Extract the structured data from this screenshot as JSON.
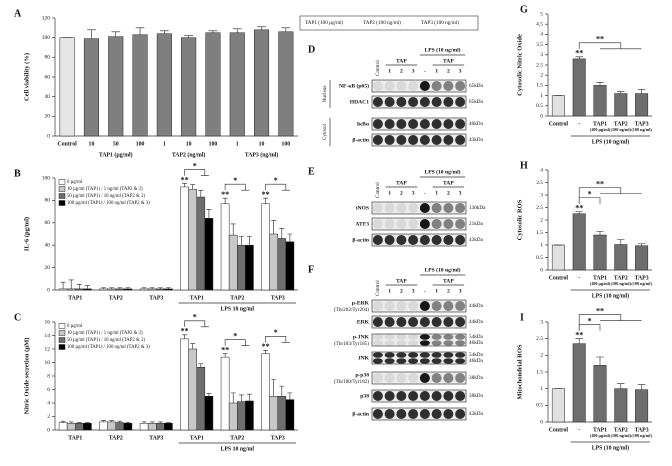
{
  "chart_data": [
    {
      "type": "bar",
      "label": "A",
      "ylabel": "Cell viability (%)",
      "categories": [
        "Control",
        "10",
        "50",
        "100",
        "1",
        "10",
        "100",
        "1",
        "10",
        "100"
      ],
      "group_labels": [
        "TAP1 (µg/ml)",
        "TAP2 (ng/ml)",
        "TAP3 (ng/ml)"
      ],
      "values": [
        100,
        99,
        101,
        103,
        104,
        100,
        105,
        105,
        108,
        106
      ],
      "errors": [
        0,
        9,
        5,
        7,
        3,
        2,
        2,
        4,
        3,
        4
      ],
      "colors": [
        "#e6e6e6",
        "#7f7f7f",
        "#7f7f7f",
        "#7f7f7f",
        "#7f7f7f",
        "#7f7f7f",
        "#7f7f7f",
        "#7f7f7f",
        "#7f7f7f",
        "#7f7f7f"
      ],
      "ylim": [
        0,
        120
      ],
      "yticks": [
        0,
        20,
        40,
        60,
        80,
        100,
        120
      ]
    },
    {
      "type": "bar",
      "label": "B",
      "ylabel": "IL-6 (pg/ml)",
      "categories": [
        "TAP1",
        "TAP2",
        "TAP3",
        "TAP1",
        "TAP2",
        "TAP3"
      ],
      "group_labels": [
        "LPS 10 ng/ml"
      ],
      "series": [
        {
          "name": "0 µg/ml",
          "color": "#ffffff",
          "values": [
            1,
            1,
            1,
            92,
            77,
            77
          ],
          "errors": [
            6,
            1,
            1,
            3,
            5,
            5
          ]
        },
        {
          "name": "10 µg/ml (TAP1) / 1 ng/ml (TAP2 & 3)",
          "color": "#c8c8c8",
          "values": [
            1,
            1,
            1,
            90,
            49,
            50
          ],
          "errors": [
            8,
            1,
            1,
            4,
            10,
            12
          ]
        },
        {
          "name": "50 µg/ml (TAP1) / 10 ng/ml (TAP2 & 3)",
          "color": "#6e6e6e",
          "values": [
            1,
            1,
            1,
            83,
            40,
            46
          ],
          "errors": [
            4,
            1,
            1,
            6,
            8,
            9
          ]
        },
        {
          "name": "100 µg/ml (TAP1) / 100 ng/ml (TAP2 & 3)",
          "color": "#000000",
          "values": [
            1,
            1,
            1,
            64,
            40,
            43
          ],
          "errors": [
            3,
            1,
            1,
            8,
            8,
            7
          ]
        }
      ],
      "annotations": [
        "**",
        "*",
        "**",
        "*",
        "**",
        "*"
      ],
      "ylim": [
        0,
        100
      ],
      "yticks": [
        0,
        20,
        40,
        60,
        80,
        100
      ]
    },
    {
      "type": "bar",
      "label": "C",
      "ylabel": "Nitric Oxide secretion (µM)",
      "categories": [
        "TAP1",
        "TAP2",
        "TAP3",
        "TAP1",
        "TAP2",
        "TAP3"
      ],
      "group_labels": [
        "LPS 10 ng/ml"
      ],
      "series": [
        {
          "name": "0 µg/ml",
          "color": "#ffffff",
          "values": [
            1.1,
            1.2,
            1.0,
            13.5,
            10.8,
            11.3
          ],
          "errors": [
            0.2,
            0.2,
            0.2,
            0.6,
            0.5,
            0.5
          ]
        },
        {
          "name": "10 µg/ml (TAP1) / 1 ng/ml (TAP2 & 3)",
          "color": "#c8c8c8",
          "values": [
            1.0,
            1.2,
            1.0,
            12.0,
            4.0,
            5.0
          ],
          "errors": [
            0.2,
            0.2,
            0.2,
            0.8,
            1.5,
            2.5
          ]
        },
        {
          "name": "50 µg/ml (TAP1) / 10 ng/ml (TAP2 & 3)",
          "color": "#6e6e6e",
          "values": [
            1.0,
            1.1,
            1.0,
            9.3,
            4.2,
            5.0
          ],
          "errors": [
            0.1,
            0.2,
            0.2,
            0.5,
            1.0,
            1.5
          ]
        },
        {
          "name": "100 µg/ml (TAP1) / 100 ng/ml (TAP2 & 3)",
          "color": "#000000",
          "values": [
            1.0,
            1.0,
            1.0,
            5.0,
            4.3,
            4.5
          ],
          "errors": [
            0.1,
            0.1,
            0.1,
            0.4,
            1.0,
            1.0
          ]
        }
      ],
      "annotations": [
        "**",
        "*",
        "**",
        "*",
        "**",
        "*"
      ],
      "ylim": [
        0,
        16
      ],
      "yticks": [
        0,
        2,
        4,
        6,
        8,
        10,
        12,
        14,
        16
      ]
    },
    {
      "type": "bar",
      "label": "G",
      "ylabel": "Cytosolic Nitric Oxide",
      "categories": [
        "Control",
        "-",
        "TAP1",
        "TAP2",
        "TAP3"
      ],
      "sublabels": [
        null,
        null,
        "(100 µg/ml)",
        "(100 ng/ml)",
        "(100 ng/ml)"
      ],
      "group_labels": [
        "LPS (10 ng/ml)"
      ],
      "values": [
        1,
        2.8,
        1.5,
        1.1,
        1.1
      ],
      "errors": [
        0,
        0.1,
        0.15,
        0.1,
        0.2
      ],
      "colors": [
        "#e0e0e0",
        "#6e6e6e",
        "#6e6e6e",
        "#6e6e6e",
        "#6e6e6e"
      ],
      "annotations": [
        "**",
        "**"
      ],
      "ylim": [
        0,
        5
      ],
      "yticks": [
        0,
        0.5,
        1,
        1.5,
        2,
        2.5,
        3,
        3.5,
        4,
        4.5,
        5
      ]
    },
    {
      "type": "bar",
      "label": "H",
      "ylabel": "Cytosolic ROS",
      "categories": [
        "Control",
        "-",
        "TAP1",
        "TAP2",
        "TAP3"
      ],
      "sublabels": [
        null,
        null,
        "(100 µg/ml)",
        "(100 ng/ml)",
        "(100 ng/ml)"
      ],
      "group_labels": [
        "LPS (10 ng/ml)"
      ],
      "values": [
        1,
        2.25,
        1.4,
        1.02,
        0.97
      ],
      "errors": [
        0,
        0.08,
        0.15,
        0.2,
        0.08
      ],
      "colors": [
        "#e0e0e0",
        "#6e6e6e",
        "#6e6e6e",
        "#6e6e6e",
        "#6e6e6e"
      ],
      "annotations": [
        "**",
        "*",
        "**"
      ],
      "ylim": [
        0,
        4
      ],
      "yticks": [
        0,
        0.5,
        1,
        1.5,
        2,
        2.5,
        3,
        3.5,
        4
      ]
    },
    {
      "type": "bar",
      "label": "I",
      "ylabel": "Mitochondrial ROS",
      "categories": [
        "Control",
        "-",
        "TAP1",
        "TAP2",
        "TAP3"
      ],
      "sublabels": [
        null,
        null,
        "(100 µg/ml)",
        "(100 ng/ml)",
        "(100 ng/ml)"
      ],
      "group_labels": [
        "LPS (10 ng/ml)"
      ],
      "values": [
        1,
        2.35,
        1.7,
        1.0,
        0.97
      ],
      "errors": [
        0,
        0.15,
        0.25,
        0.15,
        0.15
      ],
      "colors": [
        "#e0e0e0",
        "#6e6e6e",
        "#6e6e6e",
        "#6e6e6e",
        "#6e6e6e"
      ],
      "annotations": [
        "**",
        "*",
        "**"
      ],
      "ylim": [
        0,
        3
      ],
      "yticks": [
        0,
        0.5,
        1,
        1.5,
        2,
        2.5,
        3
      ]
    }
  ],
  "blots": {
    "legend": [
      "TAP1 (100 µg/ml)",
      "TAP2 (100 ng/ml)",
      "TAP3 (100 ng/ml)"
    ],
    "panels": [
      {
        "label": "D",
        "treatment": "LPS (10 ng/ml)",
        "lanes": [
          "Control",
          "1",
          "2",
          "3",
          "-",
          "1",
          "2",
          "3"
        ],
        "groups": [
          "TAP",
          "TAP"
        ],
        "compartments": [
          "Nucleus",
          "Cytosol"
        ],
        "rows": [
          {
            "name": "NF-κB (p65)",
            "sizes": [
              "65kDa"
            ]
          },
          {
            "name": "HDAC1",
            "sizes": [
              "65kDa"
            ]
          },
          {
            "name": "IκBα",
            "sizes": [
              "40kDa"
            ]
          },
          {
            "name": "β-actin",
            "sizes": [
              "43kDa"
            ]
          }
        ]
      },
      {
        "label": "E",
        "treatment": "LPS (10 ng/ml)",
        "lanes": [
          "Control",
          "1",
          "2",
          "3",
          "-",
          "1",
          "2",
          "3"
        ],
        "groups": [
          "TAP",
          "TAP"
        ],
        "rows": [
          {
            "name": "iNOS",
            "sizes": [
              "130kDa"
            ]
          },
          {
            "name": "ATF3",
            "sizes": [
              "21kDa"
            ]
          },
          {
            "name": "β-actin",
            "sizes": [
              "43kDa"
            ]
          }
        ]
      },
      {
        "label": "F",
        "treatment": "LPS (10 ng/ml)",
        "lanes": [
          "Control",
          "1",
          "2",
          "3",
          "-",
          "1",
          "2",
          "3"
        ],
        "groups": [
          "TAP",
          "TAP"
        ],
        "rows": [
          {
            "name": "p-ERK",
            "detail": "(Thr202/Tyr204)",
            "sizes": [
              "44kDa"
            ]
          },
          {
            "name": "ERK",
            "sizes": [
              "44kDa"
            ]
          },
          {
            "name": "p-JNK",
            "detail": "(Thr183/Tyr185)",
            "sizes": [
              "54kDa",
              "46kDa"
            ]
          },
          {
            "name": "JNK",
            "sizes": [
              "54kDa",
              "46kDa"
            ]
          },
          {
            "name": "p-p38",
            "detail": "(Thr180/Tyr182)",
            "sizes": [
              "38kDa"
            ]
          },
          {
            "name": "p38",
            "sizes": [
              "38kDa"
            ]
          },
          {
            "name": "β-actin",
            "sizes": [
              "43kDa"
            ]
          }
        ]
      }
    ]
  }
}
